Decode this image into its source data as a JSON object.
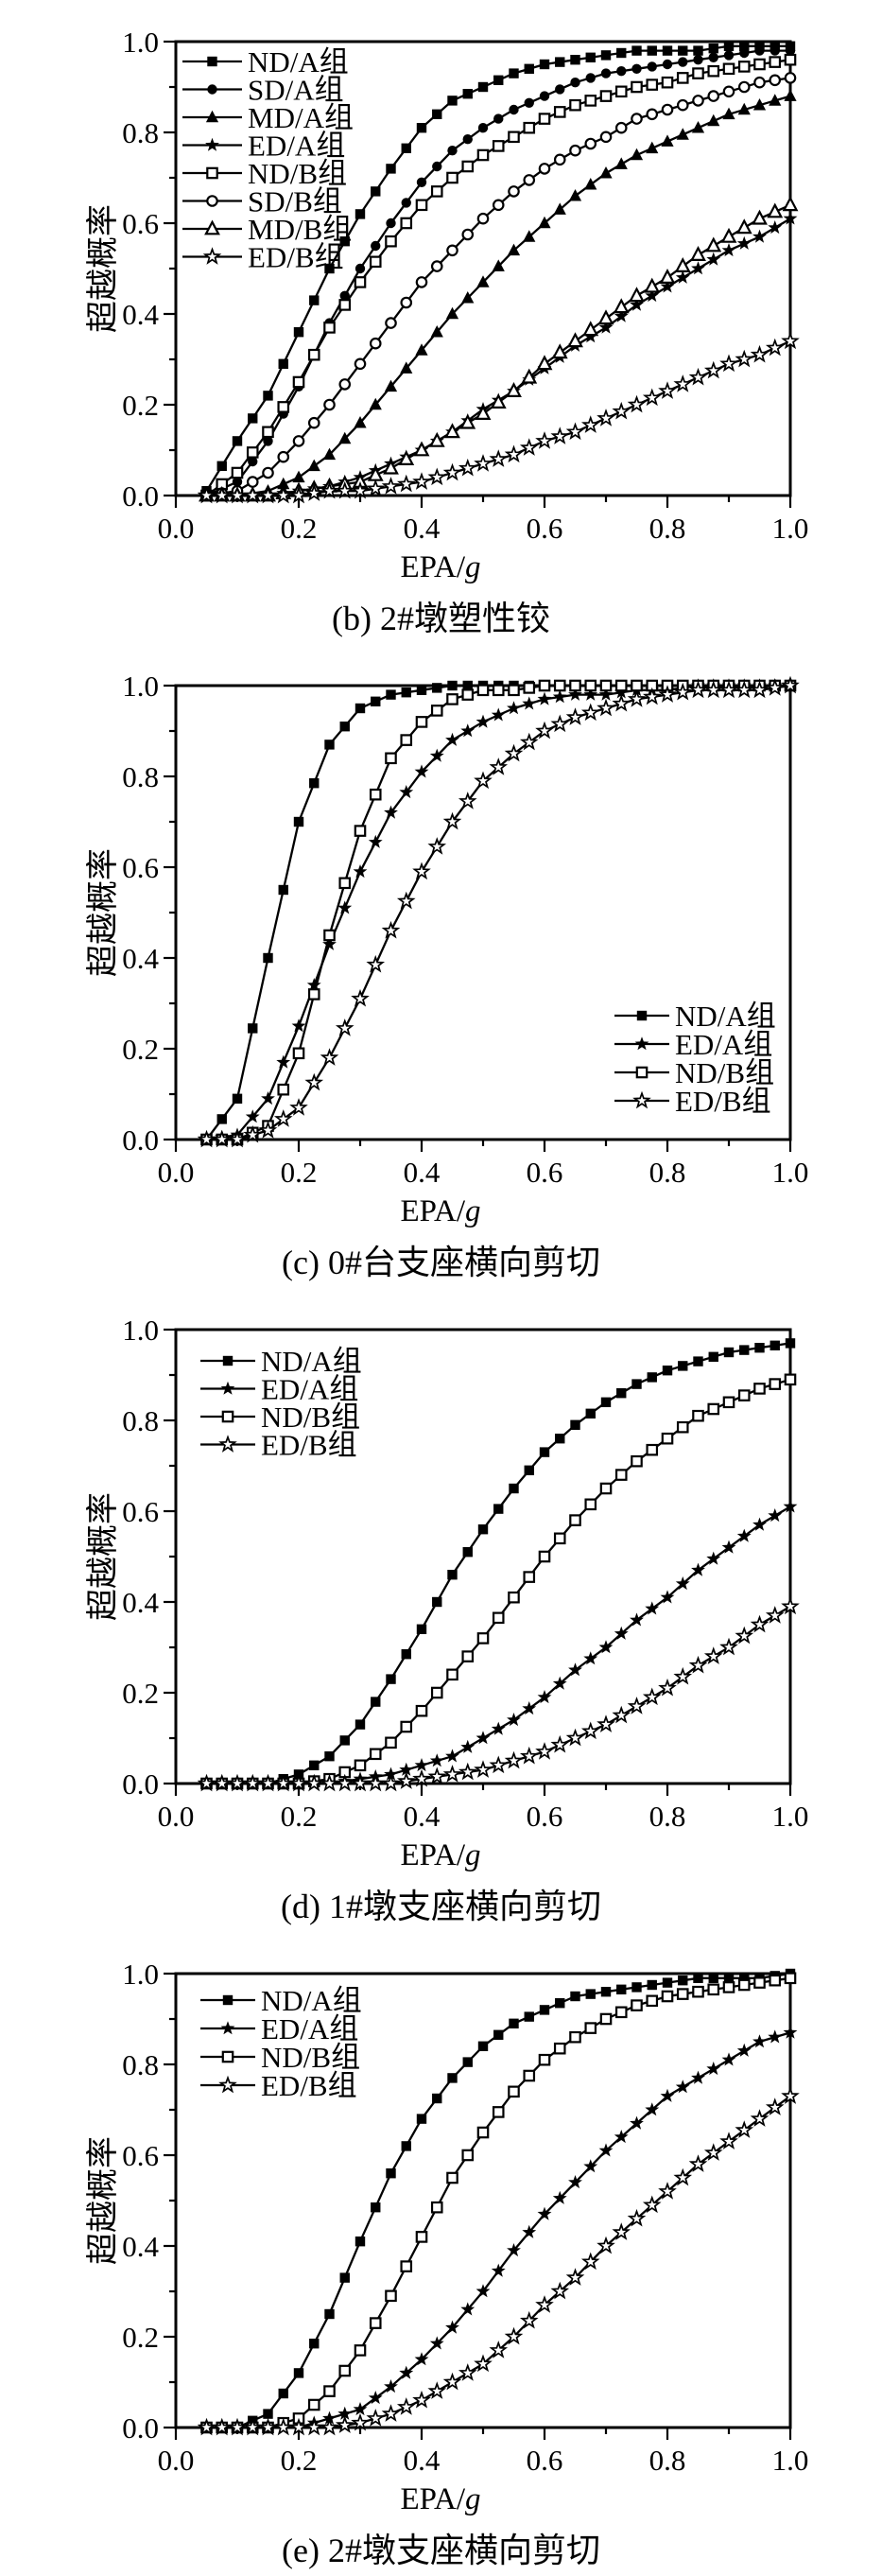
{
  "page": {
    "background": "#ffffff",
    "ink": "#000000"
  },
  "chart_data": [
    {
      "id": "b",
      "type": "line",
      "caption": "(b) 2#墩塑性铰",
      "xlabel": "EPA/g",
      "ylabel": "超越概率",
      "xlim": [
        0,
        1
      ],
      "ylim": [
        0,
        1
      ],
      "xticks": [
        "0.0",
        "0.2",
        "0.4",
        "0.6",
        "0.8",
        "1.0"
      ],
      "yticks": [
        "0.0",
        "0.2",
        "0.4",
        "0.6",
        "0.8",
        "1.0"
      ],
      "minor_tick_step": 0.1,
      "grid": "off",
      "legend_position": "inside-top-left",
      "x": [
        0.05,
        0.1,
        0.15,
        0.2,
        0.25,
        0.3,
        0.35,
        0.4,
        0.45,
        0.5,
        0.55,
        0.6,
        0.65,
        0.7,
        0.75,
        0.8,
        0.85,
        0.9,
        0.95,
        1.0
      ],
      "series": [
        {
          "name": "ND/A组",
          "marker": "square-filled",
          "values": [
            0.01,
            0.12,
            0.22,
            0.36,
            0.5,
            0.62,
            0.72,
            0.81,
            0.87,
            0.9,
            0.93,
            0.95,
            0.96,
            0.97,
            0.98,
            0.98,
            0.98,
            0.99,
            0.99,
            0.99
          ]
        },
        {
          "name": "SD/A组",
          "marker": "circle-filled",
          "values": [
            0.0,
            0.03,
            0.12,
            0.24,
            0.38,
            0.5,
            0.6,
            0.69,
            0.76,
            0.81,
            0.85,
            0.88,
            0.91,
            0.93,
            0.94,
            0.95,
            0.96,
            0.97,
            0.98,
            0.98
          ]
        },
        {
          "name": "MD/A组",
          "marker": "triangle-filled",
          "values": [
            0.0,
            0.0,
            0.01,
            0.04,
            0.09,
            0.16,
            0.24,
            0.32,
            0.4,
            0.47,
            0.54,
            0.6,
            0.66,
            0.71,
            0.75,
            0.78,
            0.81,
            0.84,
            0.86,
            0.88
          ]
        },
        {
          "name": "ED/A组",
          "marker": "star-filled",
          "values": [
            0.0,
            0.0,
            0.0,
            0.01,
            0.02,
            0.04,
            0.07,
            0.1,
            0.14,
            0.19,
            0.23,
            0.28,
            0.33,
            0.37,
            0.42,
            0.46,
            0.5,
            0.54,
            0.57,
            0.61
          ]
        },
        {
          "name": "ND/B组",
          "marker": "square-open",
          "values": [
            0.0,
            0.05,
            0.14,
            0.25,
            0.37,
            0.47,
            0.56,
            0.64,
            0.7,
            0.75,
            0.79,
            0.83,
            0.86,
            0.88,
            0.9,
            0.91,
            0.93,
            0.94,
            0.95,
            0.96
          ]
        },
        {
          "name": "SD/B组",
          "marker": "circle-open",
          "values": [
            0.0,
            0.01,
            0.05,
            0.12,
            0.2,
            0.29,
            0.38,
            0.47,
            0.54,
            0.61,
            0.67,
            0.72,
            0.76,
            0.79,
            0.83,
            0.85,
            0.87,
            0.89,
            0.91,
            0.92
          ]
        },
        {
          "name": "MD/B组",
          "marker": "triangle-open",
          "values": [
            0.0,
            0.0,
            0.0,
            0.01,
            0.02,
            0.03,
            0.06,
            0.1,
            0.14,
            0.18,
            0.23,
            0.29,
            0.34,
            0.39,
            0.44,
            0.48,
            0.53,
            0.57,
            0.61,
            0.64
          ]
        },
        {
          "name": "ED/B组",
          "marker": "star-open",
          "values": [
            0.0,
            0.0,
            0.0,
            0.0,
            0.01,
            0.01,
            0.02,
            0.03,
            0.05,
            0.07,
            0.09,
            0.12,
            0.14,
            0.17,
            0.2,
            0.23,
            0.26,
            0.29,
            0.31,
            0.34
          ]
        }
      ]
    },
    {
      "id": "c",
      "type": "line",
      "caption": "(c) 0#台支座横向剪切",
      "xlabel": "EPA/g",
      "ylabel": "超越概率",
      "xlim": [
        0,
        1
      ],
      "ylim": [
        0,
        1
      ],
      "xticks": [
        "0.0",
        "0.2",
        "0.4",
        "0.6",
        "0.8",
        "1.0"
      ],
      "yticks": [
        "0.0",
        "0.2",
        "0.4",
        "0.6",
        "0.8",
        "1.0"
      ],
      "minor_tick_step": 0.1,
      "grid": "off",
      "legend_position": "inside-right-lower",
      "x": [
        0.05,
        0.1,
        0.15,
        0.2,
        0.25,
        0.3,
        0.35,
        0.4,
        0.45,
        0.5,
        0.55,
        0.6,
        0.65,
        0.7,
        0.75,
        0.8,
        0.85,
        0.9,
        0.95,
        1.0
      ],
      "series": [
        {
          "name": "ND/A组",
          "marker": "square-filled",
          "values": [
            0.0,
            0.09,
            0.4,
            0.7,
            0.87,
            0.95,
            0.98,
            0.99,
            1.0,
            1.0,
            1.0,
            1.0,
            1.0,
            1.0,
            1.0,
            1.0,
            1.0,
            1.0,
            1.0,
            1.0
          ]
        },
        {
          "name": "ED/A组",
          "marker": "star-filled",
          "values": [
            0.0,
            0.01,
            0.09,
            0.25,
            0.43,
            0.59,
            0.72,
            0.81,
            0.88,
            0.92,
            0.95,
            0.97,
            0.98,
            0.98,
            0.99,
            0.99,
            1.0,
            1.0,
            1.0,
            1.0
          ]
        },
        {
          "name": "ND/B组",
          "marker": "square-open",
          "values": [
            0.0,
            0.0,
            0.03,
            0.19,
            0.45,
            0.68,
            0.84,
            0.92,
            0.97,
            0.99,
            0.99,
            1.0,
            1.0,
            1.0,
            1.0,
            1.0,
            1.0,
            1.0,
            1.0,
            1.0
          ]
        },
        {
          "name": "ED/B组",
          "marker": "star-open",
          "values": [
            0.0,
            0.0,
            0.02,
            0.07,
            0.18,
            0.31,
            0.46,
            0.59,
            0.7,
            0.79,
            0.85,
            0.9,
            0.93,
            0.95,
            0.97,
            0.98,
            0.99,
            0.99,
            0.99,
            1.0
          ]
        }
      ]
    },
    {
      "id": "d",
      "type": "line",
      "caption": "(d) 1#墩支座横向剪切",
      "xlabel": "EPA/g",
      "ylabel": "超越概率",
      "xlim": [
        0,
        1
      ],
      "ylim": [
        0,
        1
      ],
      "xticks": [
        "0.0",
        "0.2",
        "0.4",
        "0.6",
        "0.8",
        "1.0"
      ],
      "yticks": [
        "0.0",
        "0.2",
        "0.4",
        "0.6",
        "0.8",
        "1.0"
      ],
      "minor_tick_step": 0.1,
      "grid": "off",
      "legend_position": "inside-top-left",
      "x": [
        0.05,
        0.1,
        0.15,
        0.2,
        0.25,
        0.3,
        0.35,
        0.4,
        0.45,
        0.5,
        0.55,
        0.6,
        0.65,
        0.7,
        0.75,
        0.8,
        0.85,
        0.9,
        0.95,
        1.0
      ],
      "series": [
        {
          "name": "ND/A组",
          "marker": "square-filled",
          "values": [
            0.0,
            0.0,
            0.0,
            0.02,
            0.06,
            0.13,
            0.23,
            0.34,
            0.46,
            0.56,
            0.65,
            0.73,
            0.79,
            0.84,
            0.88,
            0.91,
            0.93,
            0.95,
            0.96,
            0.97
          ]
        },
        {
          "name": "ED/A组",
          "marker": "star-filled",
          "values": [
            0.0,
            0.0,
            0.0,
            0.0,
            0.0,
            0.01,
            0.02,
            0.04,
            0.06,
            0.1,
            0.14,
            0.19,
            0.25,
            0.3,
            0.36,
            0.41,
            0.47,
            0.52,
            0.57,
            0.61
          ]
        },
        {
          "name": "ND/B组",
          "marker": "square-open",
          "values": [
            0.0,
            0.0,
            0.0,
            0.0,
            0.01,
            0.04,
            0.09,
            0.16,
            0.24,
            0.32,
            0.41,
            0.5,
            0.58,
            0.65,
            0.71,
            0.76,
            0.81,
            0.84,
            0.87,
            0.89
          ]
        },
        {
          "name": "ED/B组",
          "marker": "star-open",
          "values": [
            0.0,
            0.0,
            0.0,
            0.0,
            0.0,
            0.0,
            0.0,
            0.01,
            0.02,
            0.03,
            0.05,
            0.07,
            0.1,
            0.13,
            0.17,
            0.21,
            0.26,
            0.3,
            0.35,
            0.39
          ]
        }
      ]
    },
    {
      "id": "e",
      "type": "line",
      "caption": "(e) 2#墩支座横向剪切",
      "xlabel": "EPA/g",
      "ylabel": "超越概率",
      "xlim": [
        0,
        1
      ],
      "ylim": [
        0,
        1
      ],
      "xticks": [
        "0.0",
        "0.2",
        "0.4",
        "0.6",
        "0.8",
        "1.0"
      ],
      "yticks": [
        "0.0",
        "0.2",
        "0.4",
        "0.6",
        "0.8",
        "1.0"
      ],
      "minor_tick_step": 0.1,
      "grid": "off",
      "legend_position": "inside-top-left",
      "x": [
        0.05,
        0.1,
        0.15,
        0.2,
        0.25,
        0.3,
        0.35,
        0.4,
        0.45,
        0.5,
        0.55,
        0.6,
        0.65,
        0.7,
        0.75,
        0.8,
        0.85,
        0.9,
        0.95,
        1.0
      ],
      "series": [
        {
          "name": "ND/A组",
          "marker": "square-filled",
          "values": [
            0.0,
            0.0,
            0.03,
            0.12,
            0.25,
            0.41,
            0.56,
            0.68,
            0.77,
            0.84,
            0.89,
            0.92,
            0.95,
            0.96,
            0.97,
            0.98,
            0.99,
            0.99,
            0.99,
            1.0
          ]
        },
        {
          "name": "ED/A组",
          "marker": "star-filled",
          "values": [
            0.0,
            0.0,
            0.0,
            0.0,
            0.02,
            0.04,
            0.09,
            0.15,
            0.22,
            0.3,
            0.39,
            0.47,
            0.54,
            0.61,
            0.67,
            0.73,
            0.77,
            0.81,
            0.85,
            0.87
          ]
        },
        {
          "name": "ND/B组",
          "marker": "square-open",
          "values": [
            0.0,
            0.0,
            0.0,
            0.02,
            0.08,
            0.17,
            0.29,
            0.42,
            0.55,
            0.65,
            0.74,
            0.81,
            0.86,
            0.9,
            0.93,
            0.95,
            0.96,
            0.97,
            0.98,
            0.99
          ]
        },
        {
          "name": "ED/B组",
          "marker": "star-open",
          "values": [
            0.0,
            0.0,
            0.0,
            0.0,
            0.0,
            0.01,
            0.03,
            0.06,
            0.1,
            0.14,
            0.2,
            0.27,
            0.33,
            0.4,
            0.46,
            0.52,
            0.58,
            0.63,
            0.68,
            0.73
          ]
        }
      ]
    }
  ]
}
